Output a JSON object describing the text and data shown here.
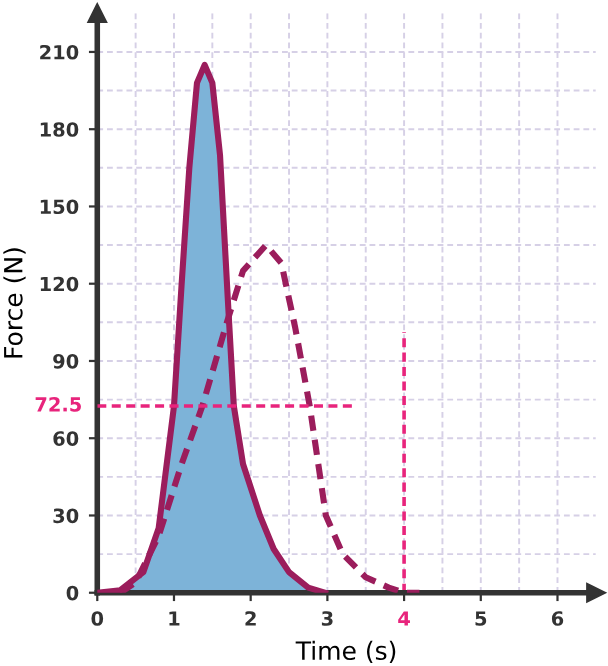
{
  "chart_data": {
    "type": "line",
    "xlabel": "Time (s)",
    "ylabel": "Force (N)",
    "series": [
      {
        "type": "area",
        "color": "#7db3d8",
        "line_style": "solid",
        "x": [
          0,
          0.3,
          0.6,
          0.8,
          1.0,
          1.1,
          1.2,
          1.3,
          1.4,
          1.5,
          1.6,
          1.7,
          1.78,
          1.9,
          2.12,
          2.3,
          2.5,
          2.75,
          2.97
        ],
        "values": [
          0,
          1,
          8,
          25,
          72.5,
          120,
          165,
          198,
          205,
          198,
          170,
          115,
          72.5,
          50,
          30,
          17,
          8,
          2,
          0
        ]
      },
      {
        "color": "#9b1d5c",
        "line_style": "dashed",
        "x": [
          0.3,
          0.5,
          0.8,
          1.1,
          1.37,
          1.69,
          1.9,
          2.2,
          2.4,
          2.58,
          2.77,
          2.98,
          3.2,
          3.5,
          3.8,
          4.0,
          4.2
        ],
        "values": [
          0,
          4,
          22,
          50,
          72.5,
          105,
          125,
          135,
          128,
          103,
          72.5,
          30,
          15,
          6,
          2,
          0,
          0
        ]
      }
    ],
    "xlim": [
      0,
      6.5
    ],
    "ylim": [
      0,
      225
    ],
    "xticks": [
      0,
      1,
      2,
      3,
      4,
      5,
      6
    ],
    "yticks": [
      0,
      30,
      60,
      90,
      120,
      150,
      180,
      210
    ],
    "grid": true,
    "ref_lines": [
      {
        "axis": "y",
        "value": 72.5,
        "label": "72.5",
        "color": "#e8247c",
        "line_style": "dashed"
      },
      {
        "axis": "x",
        "value": 4,
        "label": "4",
        "color": "#e8247c",
        "line_style": "dashed"
      }
    ]
  }
}
